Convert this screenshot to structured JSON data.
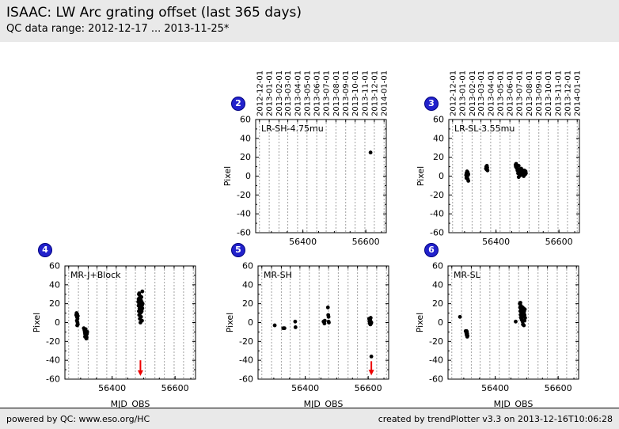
{
  "header": {
    "title": "ISAAC: LW Arc grating offset (last 365 days)",
    "subtitle": "QC data range: 2012-12-17 ... 2013-11-25*"
  },
  "footer": {
    "left": "powered by QC: www.eso.org/HC",
    "right": "created by trendPlotter v3.3 on 2013-12-16T10:06:28"
  },
  "colors": {
    "band_bg": "#e9e9e9",
    "badge_fill": "#2222cc",
    "badge_border": "#000080",
    "point": "#000000",
    "arrow": "#ee0000",
    "frame": "#000000",
    "grid": "#444444"
  },
  "axis": {
    "ylabel": "Pixel",
    "xlabel": "MJD_OBS",
    "ylim": [
      -60,
      60
    ],
    "xlim": [
      56250,
      56665
    ],
    "y_major_ticks": [
      -60,
      -40,
      -20,
      0,
      20,
      40,
      60
    ],
    "y_minor_step": 10,
    "x_labeled_ticks": [
      56400,
      56600
    ],
    "x_minor_step": 50,
    "month_gridlines": [
      56262,
      56293,
      56324,
      56352,
      56383,
      56413,
      56444,
      56474,
      56505,
      56536,
      56566,
      56597,
      56627,
      56658
    ],
    "month_labels": [
      "2012-12-01",
      "2013-01-01",
      "2013-02-01",
      "2013-03-01",
      "2013-04-01",
      "2013-05-01",
      "2013-06-01",
      "2013-07-01",
      "2013-08-01",
      "2013-09-01",
      "2013-10-01",
      "2013-11-01",
      "2013-12-01",
      "2014-01-01"
    ]
  },
  "chart_data": [
    {
      "type": "scatter",
      "badge": "2",
      "label": "LR-SH-4.75mu",
      "row": "top",
      "xlabel": "",
      "ylabel": "Pixel",
      "points": [
        [
          56615,
          25
        ]
      ],
      "arrows": []
    },
    {
      "type": "scatter",
      "badge": "3",
      "label": "LR-SL-3.55mu",
      "row": "top",
      "xlabel": "",
      "ylabel": "Pixel",
      "points": [
        [
          56305,
          1
        ],
        [
          56306,
          3
        ],
        [
          56306,
          -2
        ],
        [
          56307,
          -1
        ],
        [
          56308,
          5
        ],
        [
          56308,
          0
        ],
        [
          56309,
          2
        ],
        [
          56310,
          -3
        ],
        [
          56310,
          4
        ],
        [
          56311,
          1
        ],
        [
          56312,
          -5
        ],
        [
          56312,
          2
        ],
        [
          56368,
          8
        ],
        [
          56369,
          10
        ],
        [
          56370,
          7
        ],
        [
          56370,
          9
        ],
        [
          56371,
          11
        ],
        [
          56372,
          9
        ],
        [
          56373,
          6
        ],
        [
          56462,
          12
        ],
        [
          56463,
          10
        ],
        [
          56464,
          13
        ],
        [
          56465,
          9
        ],
        [
          56466,
          11
        ],
        [
          56467,
          8
        ],
        [
          56468,
          6
        ],
        [
          56470,
          3
        ],
        [
          56472,
          5
        ],
        [
          56472,
          11
        ],
        [
          56472,
          -1
        ],
        [
          56474,
          2
        ],
        [
          56476,
          4
        ],
        [
          56476,
          7
        ],
        [
          56478,
          1
        ],
        [
          56480,
          3
        ],
        [
          56480,
          8
        ],
        [
          56482,
          6
        ],
        [
          56484,
          4
        ],
        [
          56485,
          2
        ],
        [
          56486,
          5
        ],
        [
          56486,
          6
        ],
        [
          56488,
          3
        ],
        [
          56488,
          0
        ],
        [
          56490,
          6
        ],
        [
          56492,
          4
        ],
        [
          56493,
          2
        ],
        [
          56494,
          5
        ],
        [
          56495,
          3
        ]
      ],
      "arrows": []
    },
    {
      "type": "scatter",
      "badge": "4",
      "label": "MR-J+Block",
      "row": "bottom",
      "xlabel": "MJD_OBS",
      "ylabel": "Pixel",
      "points": [
        [
          56286,
          8
        ],
        [
          56287,
          10
        ],
        [
          56288,
          6
        ],
        [
          56288,
          2
        ],
        [
          56289,
          9
        ],
        [
          56289,
          -3
        ],
        [
          56290,
          4
        ],
        [
          56290,
          0
        ],
        [
          56291,
          7
        ],
        [
          56291,
          -2
        ],
        [
          56310,
          -6
        ],
        [
          56312,
          -8
        ],
        [
          56313,
          -10
        ],
        [
          56314,
          -12
        ],
        [
          56314,
          -15
        ],
        [
          56315,
          -9
        ],
        [
          56316,
          -14
        ],
        [
          56316,
          -7
        ],
        [
          56317,
          -11
        ],
        [
          56318,
          -13
        ],
        [
          56318,
          -17
        ],
        [
          56319,
          -16
        ],
        [
          56320,
          -12
        ],
        [
          56321,
          -10
        ],
        [
          56483,
          22
        ],
        [
          56484,
          18
        ],
        [
          56484,
          25
        ],
        [
          56485,
          30
        ],
        [
          56485,
          12
        ],
        [
          56486,
          20
        ],
        [
          56486,
          8
        ],
        [
          56486,
          31
        ],
        [
          56487,
          26
        ],
        [
          56487,
          15
        ],
        [
          56488,
          22
        ],
        [
          56488,
          4
        ],
        [
          56488,
          13
        ],
        [
          56489,
          17
        ],
        [
          56489,
          28
        ],
        [
          56490,
          10
        ],
        [
          56490,
          21
        ],
        [
          56490,
          0
        ],
        [
          56491,
          14
        ],
        [
          56491,
          24
        ],
        [
          56492,
          19
        ],
        [
          56492,
          6
        ],
        [
          56492,
          11
        ],
        [
          56493,
          16
        ],
        [
          56493,
          27
        ],
        [
          56494,
          12
        ],
        [
          56494,
          22
        ],
        [
          56495,
          18
        ],
        [
          56495,
          2
        ],
        [
          56496,
          15
        ],
        [
          56496,
          33
        ],
        [
          56497,
          20
        ]
      ],
      "arrows": [
        {
          "x": 56490,
          "from": -40,
          "to": -56.5
        }
      ]
    },
    {
      "type": "scatter",
      "badge": "5",
      "label": "MR-SH",
      "row": "bottom",
      "xlabel": "MJD_OBS",
      "ylabel": "Pixel",
      "points": [
        [
          56303,
          -3
        ],
        [
          56330,
          -6
        ],
        [
          56334,
          -6
        ],
        [
          56368,
          1
        ],
        [
          56369,
          -5
        ],
        [
          56458,
          1
        ],
        [
          56461,
          -1
        ],
        [
          56462,
          2
        ],
        [
          56472,
          16
        ],
        [
          56473,
          8
        ],
        [
          56474,
          6
        ],
        [
          56474,
          1
        ],
        [
          56475,
          0
        ],
        [
          56603,
          4
        ],
        [
          56604,
          1
        ],
        [
          56605,
          -1
        ],
        [
          56606,
          3
        ],
        [
          56606,
          0
        ],
        [
          56607,
          -2
        ],
        [
          56608,
          1
        ],
        [
          56608,
          5
        ],
        [
          56609,
          -1
        ],
        [
          56610,
          0
        ],
        [
          56610,
          -36
        ]
      ],
      "arrows": [
        {
          "x": 56610,
          "from": -41,
          "to": -56
        }
      ]
    },
    {
      "type": "scatter",
      "badge": "6",
      "label": "MR-SL",
      "row": "bottom",
      "xlabel": "MJD_OBS",
      "ylabel": "Pixel",
      "points": [
        [
          56288,
          6
        ],
        [
          56306,
          -9
        ],
        [
          56308,
          -11
        ],
        [
          56309,
          -13
        ],
        [
          56309,
          -9
        ],
        [
          56310,
          -10
        ],
        [
          56311,
          -12
        ],
        [
          56311,
          -15
        ],
        [
          56312,
          -14
        ],
        [
          56465,
          1
        ],
        [
          56478,
          20
        ],
        [
          56479,
          16
        ],
        [
          56480,
          21
        ],
        [
          56480,
          12
        ],
        [
          56481,
          18
        ],
        [
          56481,
          8
        ],
        [
          56482,
          14
        ],
        [
          56482,
          5
        ],
        [
          56483,
          10
        ],
        [
          56483,
          17
        ],
        [
          56484,
          13
        ],
        [
          56484,
          3
        ],
        [
          56485,
          15
        ],
        [
          56485,
          7
        ],
        [
          56486,
          11
        ],
        [
          56487,
          16
        ],
        [
          56487,
          1
        ],
        [
          56488,
          9
        ],
        [
          56488,
          -2
        ],
        [
          56489,
          13
        ],
        [
          56490,
          6
        ],
        [
          56490,
          15
        ],
        [
          56491,
          10
        ],
        [
          56491,
          -3
        ],
        [
          56492,
          12
        ],
        [
          56493,
          8
        ],
        [
          56493,
          2
        ],
        [
          56494,
          14
        ],
        [
          56495,
          5
        ]
      ],
      "arrows": []
    }
  ]
}
